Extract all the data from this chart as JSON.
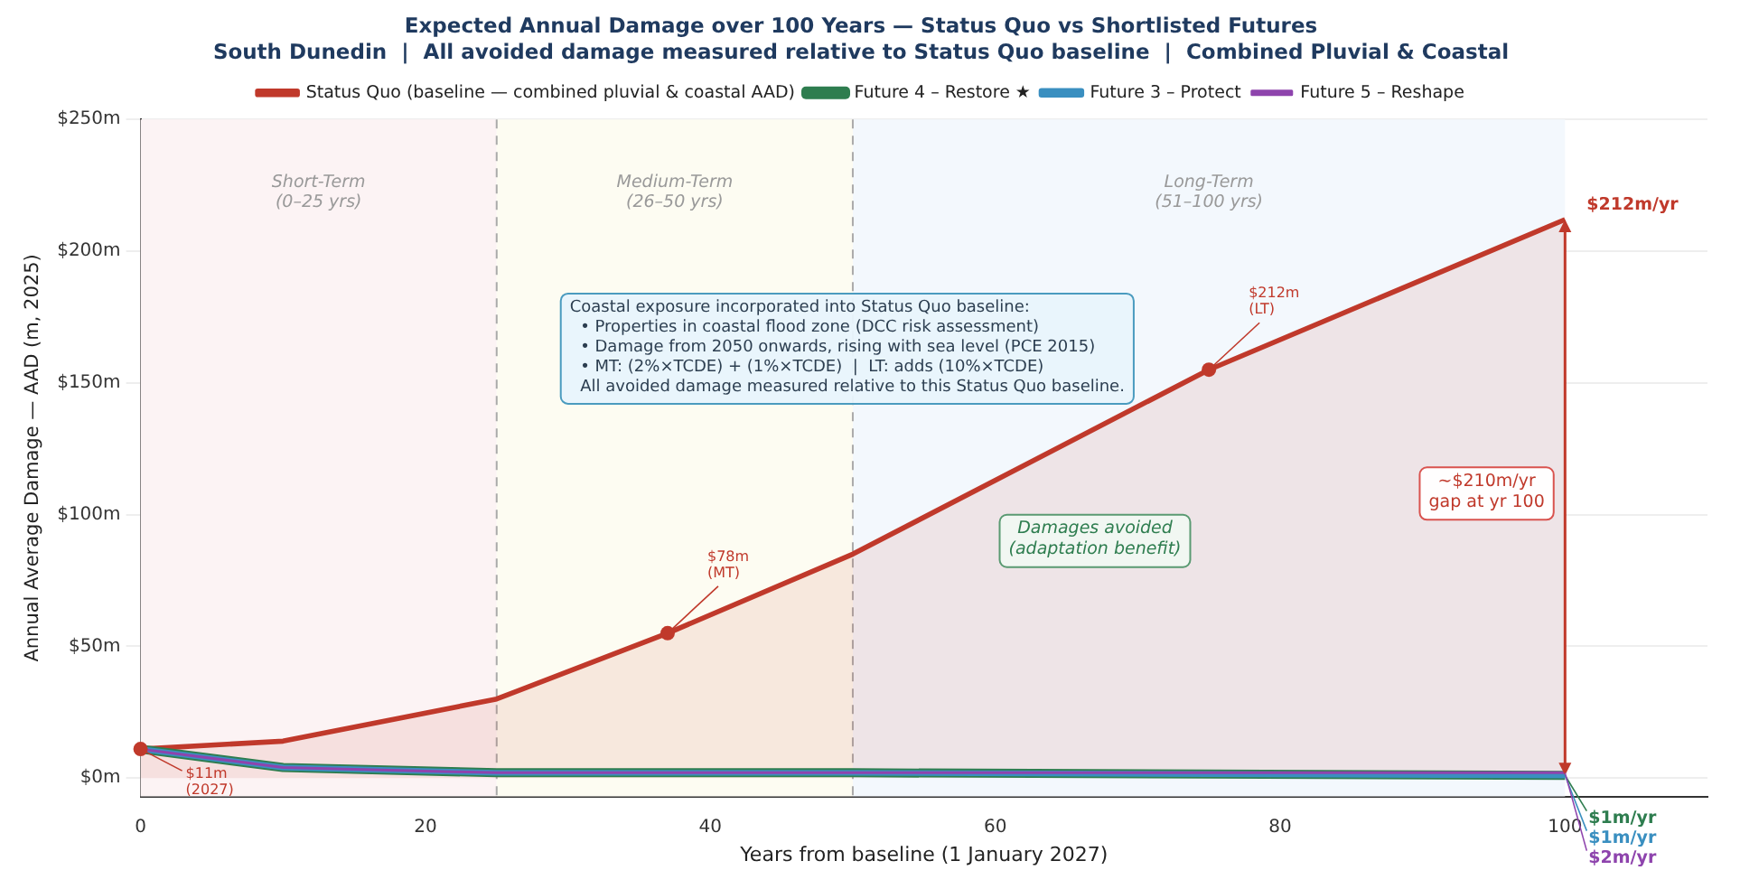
{
  "chart_data": {
    "type": "line",
    "title": "Expected Annual Damage over 100 Years — Status Quo vs Shortlisted Futures",
    "subtitle": "South Dunedin  |  All avoided damage measured relative to Status Quo baseline  |  Combined Pluvial & Coastal",
    "xlabel": "Years from baseline (1 January 2027)",
    "ylabel": "Annual Average Damage — AAD (m, 2025)",
    "x": [
      0,
      10,
      25,
      37,
      50,
      75,
      100
    ],
    "series": [
      {
        "name": "Status Quo (baseline — combined pluvial & coastal AAD)",
        "type": "area",
        "color": "#c0392b",
        "values": [
          11,
          14,
          30,
          55,
          85,
          155,
          212
        ],
        "value_labels": [
          null,
          null,
          null,
          null,
          null,
          null,
          "$212m/yr"
        ]
      },
      {
        "name": "Future 4 – Restore ★",
        "color": "#2e7d4f",
        "values": [
          11,
          4,
          2,
          2,
          2,
          1.5,
          1
        ],
        "value_labels": [
          null,
          null,
          null,
          null,
          null,
          null,
          "$1m/yr"
        ]
      },
      {
        "name": "Future 3 – Protect",
        "color": "#3a8fc0",
        "values": [
          11,
          4,
          2,
          2,
          2,
          1.5,
          1
        ],
        "value_labels": [
          null,
          null,
          null,
          null,
          null,
          null,
          "$1m/yr"
        ]
      },
      {
        "name": "Future 5 – Reshape",
        "color": "#8e44ad",
        "values": [
          11,
          4,
          2,
          2,
          2,
          2,
          2
        ],
        "value_labels": [
          null,
          null,
          null,
          null,
          null,
          null,
          "$2m/yr"
        ]
      }
    ],
    "xlim": [
      0,
      110
    ],
    "xticks": [
      0,
      20,
      40,
      60,
      80,
      100
    ],
    "ylim": [
      -7,
      250
    ],
    "yticks": [
      {
        "value": 0,
        "label": "$0m"
      },
      {
        "value": 50,
        "label": "$50m"
      },
      {
        "value": 100,
        "label": "$100m"
      },
      {
        "value": 150,
        "label": "$150m"
      },
      {
        "value": 200,
        "label": "$200m"
      },
      {
        "value": 250,
        "label": "$250m"
      }
    ],
    "grid": "y",
    "legend": "top",
    "marker": "none",
    "line_style": "solid",
    "bands": [
      {
        "axis": "x",
        "from": 0,
        "to": 25,
        "label": "Short-Term\n(0–25 yrs)",
        "color": "#fcf3f4"
      },
      {
        "axis": "x",
        "from": 25,
        "to": 50,
        "label": "Medium-Term\n(26–50 yrs)",
        "color": "#fdfcf2"
      },
      {
        "axis": "x",
        "from": 50,
        "to": 100,
        "label": "Long-Term\n(51–100 yrs)",
        "color": "#f3f8fd"
      }
    ],
    "ref_lines": [
      {
        "axis": "x",
        "value": 25,
        "color": "#aaaaaa",
        "line_style": "dashed"
      },
      {
        "axis": "x",
        "value": 50,
        "color": "#aaaaaa",
        "line_style": "dashed"
      }
    ],
    "annotations": [
      "Coastal exposure incorporated into Status Quo baseline:\n  • Properties in coastal flood zone (DCC risk assessment)\n  • Damage from 2050 onwards, rising with sea level (PCE 2015)\n  • MT: (2%×TCDE) + (1%×TCDE)  |  LT: adds (10%×TCDE)\n  All avoided damage measured relative to this Status Quo baseline.",
      "Damages avoided\n(adaptation benefit)",
      "~$210m/yr\ngap at yr 100",
      {
        "text": "$11m\n(2027)",
        "x": 0,
        "y": 11
      },
      {
        "text": "$78m\n(MT)",
        "x": 37,
        "y": 55
      },
      {
        "text": "$212m\n(LT)",
        "x": 75,
        "y": 155
      }
    ]
  }
}
